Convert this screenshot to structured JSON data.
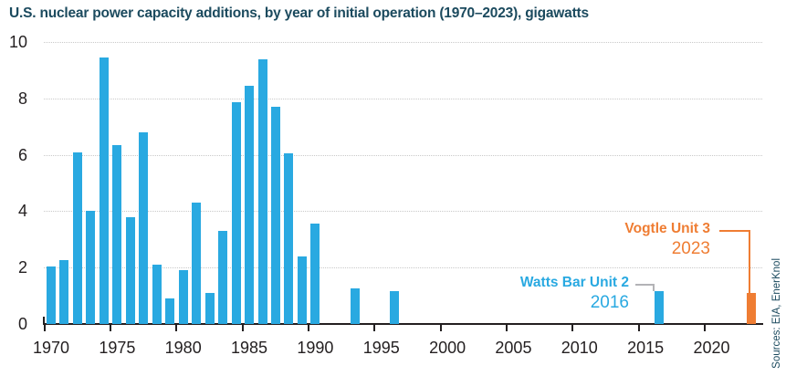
{
  "title": "U.S. nuclear power capacity additions, by year of initial operation (1970–2023), gigawatts",
  "source": "Sources: EIA, EnerKnol",
  "colors": {
    "bar_blue": "#29a9e1",
    "bar_orange": "#ef7d33",
    "title_navy": "#1b4a5e",
    "axis_text": "#231f20",
    "gridline": "#c9c9c9",
    "connector_gray": "#b3b3b6"
  },
  "chart_data": {
    "type": "bar",
    "title": "U.S. nuclear power capacity additions, by year of initial operation (1970–2023), gigawatts",
    "xlabel": "year of initial operation",
    "ylabel": "gigawatts",
    "ylim": [
      0,
      10
    ],
    "yticks": [
      0,
      2,
      4,
      6,
      8,
      10
    ],
    "xticks": [
      1970,
      1975,
      1980,
      1985,
      1990,
      1995,
      2000,
      2005,
      2010,
      2015,
      2020
    ],
    "xlim": [
      1969.5,
      2024
    ],
    "grid": "horizontal-dotted",
    "legend": "none",
    "points": [
      {
        "year": 1970,
        "value": 2.05
      },
      {
        "year": 1971,
        "value": 2.25
      },
      {
        "year": 1972,
        "value": 6.1
      },
      {
        "year": 1973,
        "value": 4.0
      },
      {
        "year": 1974,
        "value": 9.45
      },
      {
        "year": 1975,
        "value": 6.35
      },
      {
        "year": 1976,
        "value": 3.8
      },
      {
        "year": 1977,
        "value": 6.8
      },
      {
        "year": 1978,
        "value": 2.1
      },
      {
        "year": 1979,
        "value": 0.9
      },
      {
        "year": 1980,
        "value": 1.9
      },
      {
        "year": 1981,
        "value": 4.3
      },
      {
        "year": 1982,
        "value": 1.1
      },
      {
        "year": 1983,
        "value": 3.3
      },
      {
        "year": 1984,
        "value": 7.85
      },
      {
        "year": 1985,
        "value": 8.45
      },
      {
        "year": 1986,
        "value": 9.4
      },
      {
        "year": 1987,
        "value": 7.7
      },
      {
        "year": 1988,
        "value": 6.05
      },
      {
        "year": 1989,
        "value": 2.4
      },
      {
        "year": 1990,
        "value": 3.55
      },
      {
        "year": 1993,
        "value": 1.25
      },
      {
        "year": 1996,
        "value": 1.15
      },
      {
        "year": 2016,
        "value": 1.15
      },
      {
        "year": 2023,
        "value": 1.1,
        "color_key": "bar_orange"
      }
    ],
    "annotations": [
      {
        "name": "Watts Bar Unit 2",
        "year": "2016",
        "color_key": "bar_blue",
        "target_year": 2016
      },
      {
        "name": "Vogtle Unit 3",
        "year": "2023",
        "color_key": "bar_orange",
        "target_year": 2023
      }
    ]
  }
}
